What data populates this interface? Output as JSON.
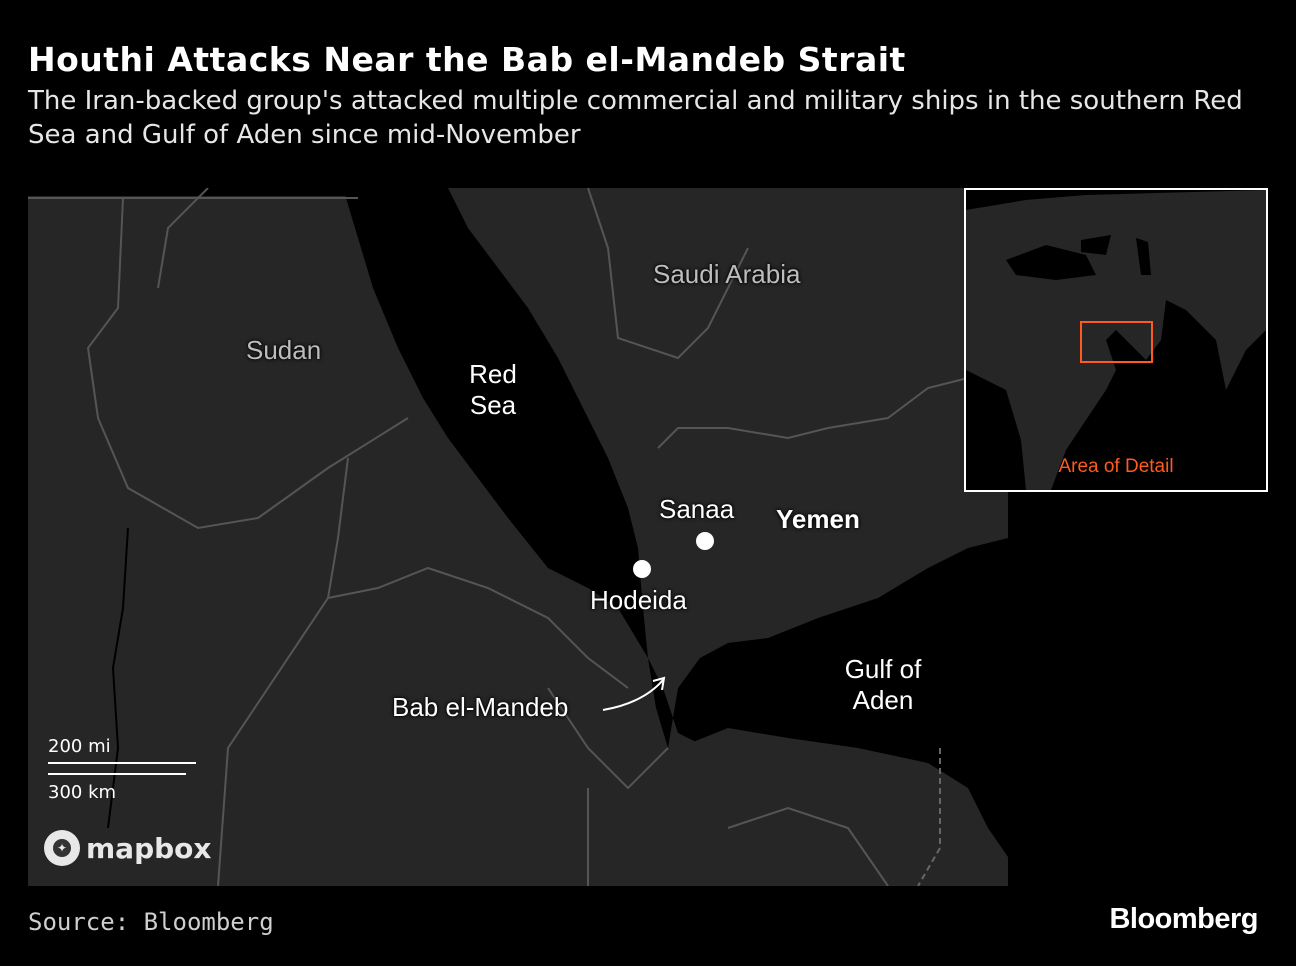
{
  "header": {
    "title": "Houthi Attacks Near the Bab el-Mandeb Strait",
    "subtitle": "The Iran-backed group's attacked multiple commercial and military ships in the southern Red Sea and Gulf of Aden since mid-November"
  },
  "map": {
    "countries": {
      "saudi_arabia": "Saudi Arabia",
      "sudan": "Sudan",
      "yemen": "Yemen"
    },
    "seas": {
      "red_sea_line1": "Red",
      "red_sea_line2": "Sea",
      "gulf_line1": "Gulf of",
      "gulf_line2": "Aden"
    },
    "cities": {
      "sanaa": "Sanaa",
      "hodeida": "Hodeida"
    },
    "strait_label": "Bab el-Mandeb",
    "scale": {
      "miles": "200 mi",
      "km": "300 km"
    },
    "attribution": "mapbox",
    "colors": {
      "land": "#262626",
      "water": "#000000",
      "borders": "#555555",
      "highlight": "#ff5a1f"
    }
  },
  "inset": {
    "label": "Area of Detail"
  },
  "footer": {
    "source": "Source: Bloomberg",
    "brand": "Bloomberg"
  }
}
